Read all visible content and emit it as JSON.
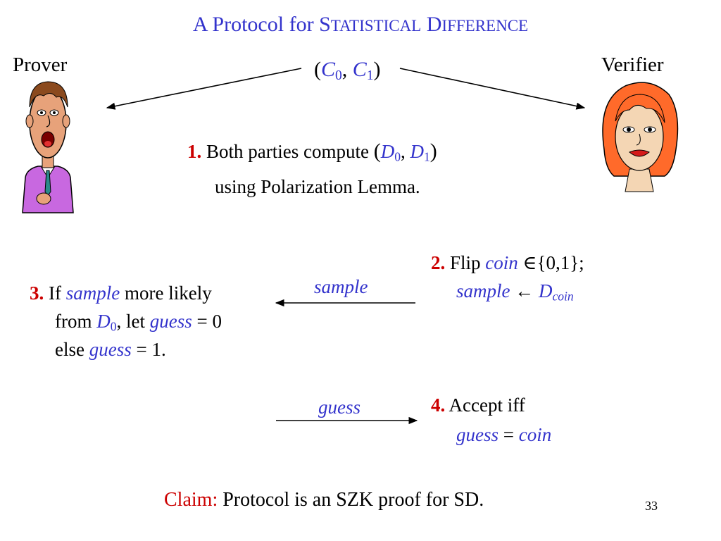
{
  "title": {
    "A": "A",
    "rest1": " Protocol for ",
    "S": "S",
    "tatistical": "TATISTICAL",
    "space": " ",
    "D": "D",
    "ifference": "IFFERENCE"
  },
  "prover_label": "Prover",
  "verifier_label": "Verifier",
  "top_pair": {
    "open": "(",
    "c": "C",
    "sub0": "0",
    "comma": ", ",
    "sub1": "1",
    "close": ")"
  },
  "step1": {
    "num": "1.",
    "text": " Both parties compute ",
    "open": "(",
    "d": "D",
    "sub0": "0",
    "comma": ", ",
    "sub1": "1",
    "close": ")",
    "line2": "using Polarization Lemma."
  },
  "step2": {
    "num": "2.",
    "flip": " Flip ",
    "coin": "coin",
    "set": " ∈{0,1};",
    "sample": "sample",
    "arrow": " ← ",
    "d": "D",
    "sub_coin": "coin"
  },
  "step3": {
    "num": "3.",
    "if": " If ",
    "sample": "sample",
    "more": " more likely",
    "from": "from ",
    "d": "D",
    "sub0": "0",
    "let": ", let ",
    "guess": "guess",
    "eq0": " = 0",
    "else": "else ",
    "guess2": "guess",
    "eq1": " = 1."
  },
  "step4": {
    "num": "4.",
    "accept": " Accept iff",
    "guess": "guess",
    "eq": " = ",
    "coin": "coin"
  },
  "msg_sample": "sample",
  "msg_guess": "guess",
  "claim": {
    "label": "Claim:",
    "text": " Protocol is an SZK proof for SD."
  },
  "page_number": "33",
  "colors": {
    "accent_blue": "#3333cc",
    "accent_red": "#cc0000"
  },
  "icons": {
    "prover": "cartoon-man-icon",
    "verifier": "cartoon-woman-icon"
  }
}
